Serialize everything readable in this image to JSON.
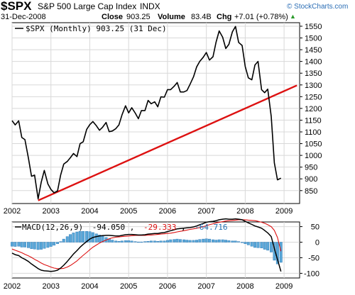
{
  "header": {
    "symbol": "$SPX",
    "name": "S&P 500 Large Cap Index",
    "exchange": "INDX",
    "date": "31-Dec-2008",
    "close_label": "Close",
    "close_value": "903.25",
    "volume_label": "Volume",
    "volume_value": "83.4B",
    "chg_label": "Chg",
    "chg_value": "+7.01 (+0.78%)",
    "arrow_glyph": "▲",
    "brand": "© StockCharts.com"
  },
  "chart_data": [
    {
      "type": "line",
      "legend": "$SPX (Monthly) 903.25 (31 Dec)",
      "x_ticks": [
        "2002",
        "2003",
        "2004",
        "2005",
        "2006",
        "2007",
        "2008",
        "2009"
      ],
      "x_domain": [
        2002.0,
        2009.4
      ],
      "ylim": [
        795,
        1565
      ],
      "y_ticks": [
        850,
        900,
        950,
        1000,
        1050,
        1100,
        1150,
        1200,
        1250,
        1300,
        1350,
        1400,
        1450,
        1500,
        1550
      ],
      "series": [
        {
          "name": "$SPX (Monthly)",
          "color": "#000000",
          "points": [
            [
              2002.0,
              1148
            ],
            [
              2002.08,
              1130
            ],
            [
              2002.17,
              1147
            ],
            [
              2002.25,
              1076
            ],
            [
              2002.33,
              1067
            ],
            [
              2002.42,
              989
            ],
            [
              2002.5,
              911
            ],
            [
              2002.58,
              916
            ],
            [
              2002.67,
              815
            ],
            [
              2002.75,
              885
            ],
            [
              2002.83,
              936
            ],
            [
              2002.92,
              879
            ],
            [
              2003.0,
              855
            ],
            [
              2003.08,
              841
            ],
            [
              2003.17,
              848
            ],
            [
              2003.25,
              916
            ],
            [
              2003.33,
              963
            ],
            [
              2003.42,
              974
            ],
            [
              2003.5,
              990
            ],
            [
              2003.58,
              1008
            ],
            [
              2003.67,
              995
            ],
            [
              2003.75,
              1050
            ],
            [
              2003.83,
              1058
            ],
            [
              2003.92,
              1111
            ],
            [
              2004.0,
              1131
            ],
            [
              2004.08,
              1144
            ],
            [
              2004.17,
              1126
            ],
            [
              2004.25,
              1107
            ],
            [
              2004.33,
              1120
            ],
            [
              2004.42,
              1140
            ],
            [
              2004.5,
              1101
            ],
            [
              2004.58,
              1104
            ],
            [
              2004.67,
              1114
            ],
            [
              2004.75,
              1130
            ],
            [
              2004.83,
              1173
            ],
            [
              2004.92,
              1211
            ],
            [
              2005.0,
              1181
            ],
            [
              2005.08,
              1203
            ],
            [
              2005.17,
              1180
            ],
            [
              2005.25,
              1156
            ],
            [
              2005.33,
              1191
            ],
            [
              2005.42,
              1191
            ],
            [
              2005.5,
              1234
            ],
            [
              2005.58,
              1220
            ],
            [
              2005.67,
              1228
            ],
            [
              2005.75,
              1207
            ],
            [
              2005.83,
              1249
            ],
            [
              2005.92,
              1248
            ],
            [
              2006.0,
              1280
            ],
            [
              2006.08,
              1280
            ],
            [
              2006.17,
              1294
            ],
            [
              2006.25,
              1310
            ],
            [
              2006.33,
              1270
            ],
            [
              2006.42,
              1270
            ],
            [
              2006.5,
              1276
            ],
            [
              2006.58,
              1303
            ],
            [
              2006.67,
              1335
            ],
            [
              2006.75,
              1377
            ],
            [
              2006.83,
              1400
            ],
            [
              2006.92,
              1418
            ],
            [
              2007.0,
              1438
            ],
            [
              2007.08,
              1406
            ],
            [
              2007.17,
              1420
            ],
            [
              2007.25,
              1482
            ],
            [
              2007.33,
              1530
            ],
            [
              2007.42,
              1503
            ],
            [
              2007.5,
              1455
            ],
            [
              2007.58,
              1473
            ],
            [
              2007.67,
              1526
            ],
            [
              2007.75,
              1549
            ],
            [
              2007.83,
              1481
            ],
            [
              2007.92,
              1468
            ],
            [
              2008.0,
              1378
            ],
            [
              2008.08,
              1330
            ],
            [
              2008.17,
              1322
            ],
            [
              2008.25,
              1385
            ],
            [
              2008.33,
              1400
            ],
            [
              2008.42,
              1280
            ],
            [
              2008.5,
              1267
            ],
            [
              2008.58,
              1282
            ],
            [
              2008.67,
              1166
            ],
            [
              2008.75,
              968
            ],
            [
              2008.83,
              896
            ],
            [
              2008.92,
              903
            ]
          ]
        }
      ],
      "trendline": {
        "name": "trendline",
        "color": "#dd1111",
        "from": [
          2002.67,
          808
        ],
        "to": [
          2009.33,
          1298
        ]
      }
    },
    {
      "type": "line",
      "legend_prefix": "MACD(12,26,9)",
      "legend_values": [
        "-94.050",
        "-29.333",
        "-64.716"
      ],
      "legend_colors": [
        "#000000",
        "#dd1111",
        "#1f6fb2"
      ],
      "x_ticks": [
        "2002",
        "2003",
        "2004",
        "2005",
        "2006",
        "2007",
        "2008",
        "2009"
      ],
      "x_domain": [
        2002.0,
        2009.4
      ],
      "ylim": [
        -115,
        65
      ],
      "y_ticks": [
        -100,
        -50,
        0,
        50
      ],
      "x": [
        2002.0,
        2002.08,
        2002.17,
        2002.25,
        2002.33,
        2002.42,
        2002.5,
        2002.58,
        2002.67,
        2002.75,
        2002.83,
        2002.92,
        2003.0,
        2003.08,
        2003.17,
        2003.25,
        2003.33,
        2003.42,
        2003.5,
        2003.58,
        2003.67,
        2003.75,
        2003.83,
        2003.92,
        2004.0,
        2004.08,
        2004.17,
        2004.25,
        2004.33,
        2004.42,
        2004.5,
        2004.58,
        2004.67,
        2004.75,
        2004.83,
        2004.92,
        2005.0,
        2005.08,
        2005.17,
        2005.25,
        2005.33,
        2005.42,
        2005.5,
        2005.58,
        2005.67,
        2005.75,
        2005.83,
        2005.92,
        2006.0,
        2006.08,
        2006.17,
        2006.25,
        2006.33,
        2006.42,
        2006.5,
        2006.58,
        2006.67,
        2006.75,
        2006.83,
        2006.92,
        2007.0,
        2007.08,
        2007.17,
        2007.25,
        2007.33,
        2007.42,
        2007.5,
        2007.58,
        2007.67,
        2007.75,
        2007.83,
        2007.92,
        2008.0,
        2008.08,
        2008.17,
        2008.25,
        2008.33,
        2008.42,
        2008.5,
        2008.58,
        2008.67,
        2008.75,
        2008.83,
        2008.92
      ],
      "series": [
        {
          "name": "-94.050",
          "color": "#000000",
          "values": [
            -35,
            -40,
            -43,
            -50,
            -55,
            -62,
            -70,
            -77,
            -85,
            -90,
            -92,
            -93,
            -94,
            -93,
            -90,
            -83,
            -74,
            -62,
            -50,
            -38,
            -27,
            -16,
            -7,
            2,
            10,
            15,
            18,
            20,
            21,
            22,
            22,
            21,
            20,
            20,
            22,
            24,
            25,
            25,
            24,
            23,
            23,
            24,
            26,
            27,
            28,
            28,
            30,
            31,
            34,
            37,
            40,
            43,
            44,
            45,
            46,
            47,
            49,
            52,
            56,
            60,
            64,
            66,
            67,
            69,
            72,
            74,
            75,
            74,
            74,
            75,
            74,
            72,
            67,
            62,
            57,
            52,
            49,
            45,
            38,
            30,
            18,
            -20,
            -55,
            -94
          ]
        },
        {
          "name": "-29.333",
          "color": "#dd1111",
          "values": [
            -22,
            -26,
            -30,
            -34,
            -39,
            -44,
            -49,
            -55,
            -61,
            -67,
            -72,
            -76,
            -80,
            -83,
            -85,
            -85,
            -84,
            -80,
            -75,
            -68,
            -60,
            -51,
            -42,
            -33,
            -24,
            -16,
            -9,
            -3,
            2,
            7,
            11,
            14,
            16,
            17,
            18,
            19,
            20,
            21,
            22,
            22,
            22,
            22,
            23,
            23,
            24,
            25,
            26,
            27,
            28,
            29,
            31,
            33,
            35,
            37,
            39,
            41,
            43,
            45,
            47,
            50,
            53,
            56,
            59,
            62,
            64,
            66,
            68,
            69,
            70,
            71,
            72,
            72,
            72,
            71,
            70,
            69,
            67,
            64,
            61,
            56,
            50,
            38,
            15,
            -29
          ]
        },
        {
          "name": "-64.716",
          "color": "#1f6fb2",
          "values": [
            -13,
            -14,
            -13,
            -16,
            -16,
            -18,
            -21,
            -22,
            -24,
            -23,
            -20,
            -17,
            -14,
            -10,
            -5,
            2,
            10,
            18,
            25,
            30,
            33,
            35,
            35,
            35,
            34,
            31,
            27,
            23,
            19,
            15,
            11,
            7,
            4,
            3,
            4,
            5,
            5,
            4,
            2,
            1,
            1,
            2,
            3,
            4,
            4,
            3,
            4,
            4,
            6,
            8,
            9,
            10,
            9,
            8,
            7,
            6,
            6,
            7,
            9,
            10,
            11,
            10,
            8,
            7,
            8,
            8,
            7,
            5,
            4,
            4,
            2,
            0,
            -5,
            -9,
            -13,
            -17,
            -18,
            -19,
            -23,
            -26,
            -32,
            -58,
            -70,
            -65
          ]
        }
      ]
    }
  ]
}
